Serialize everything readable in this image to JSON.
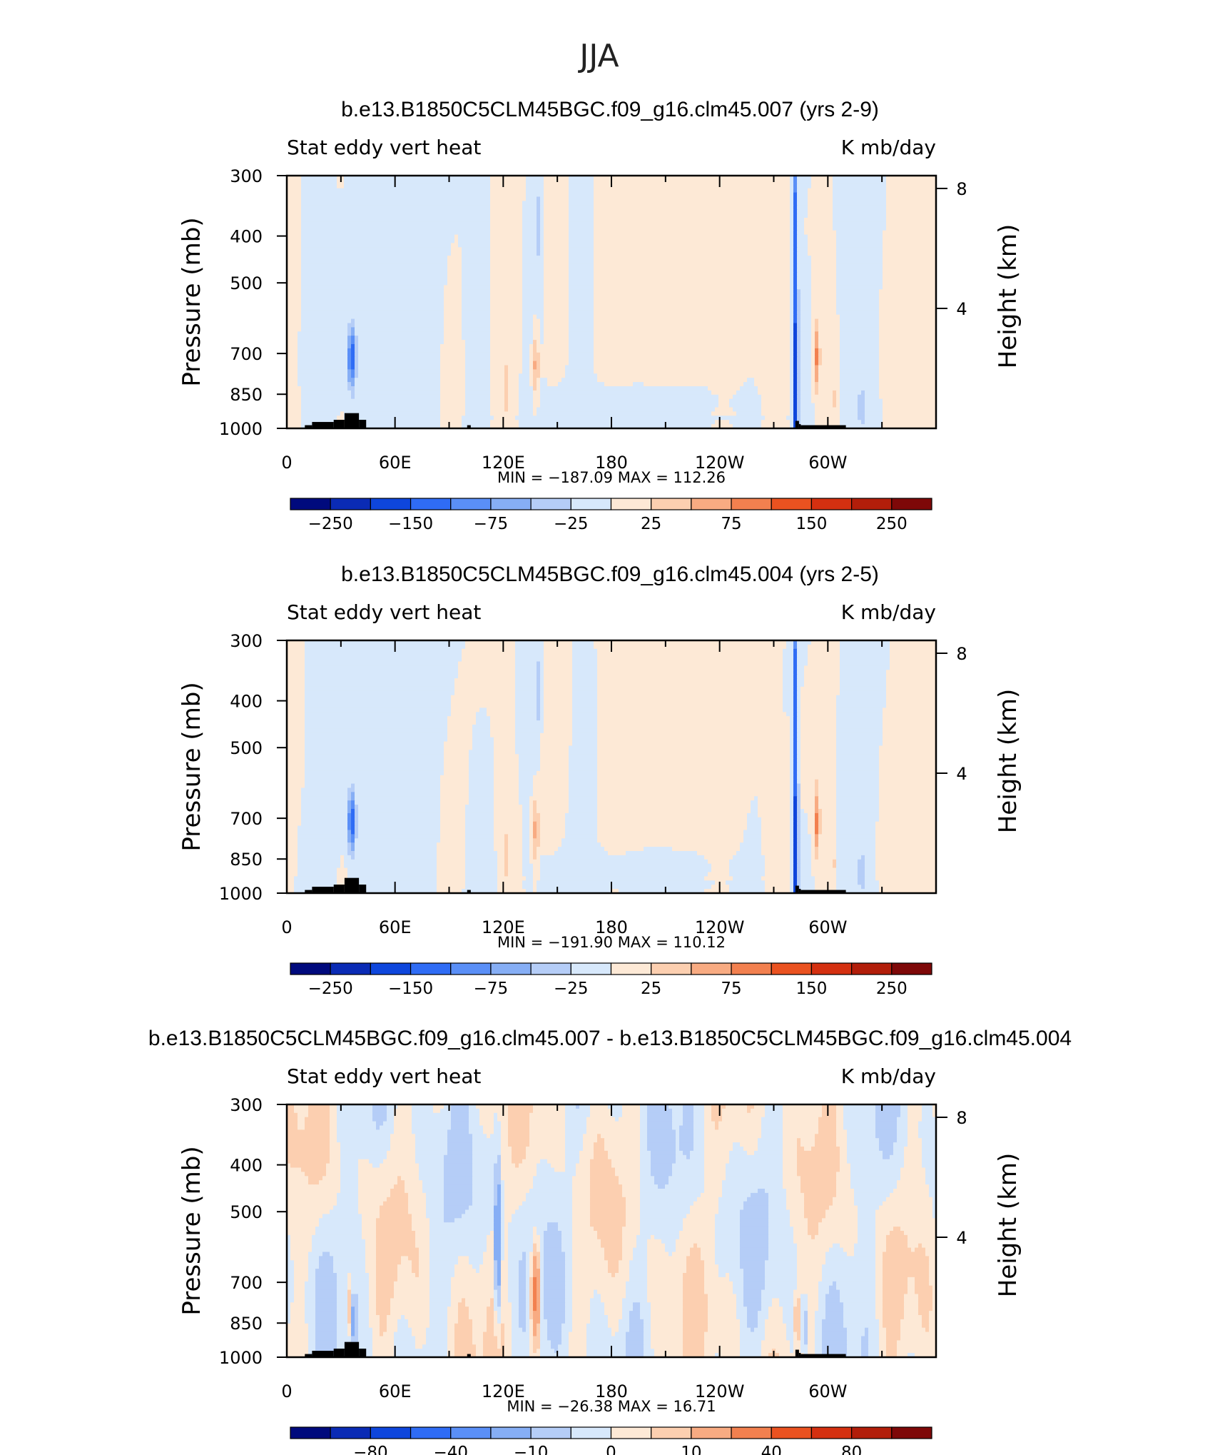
{
  "figure_title": "JJA",
  "colors": {
    "land": "#000000",
    "frame": "#000000",
    "cb_abs": [
      "#000a7d",
      "#0a2bb5",
      "#0e46dc",
      "#2f6cf5",
      "#5a8ff7",
      "#86aef5",
      "#b5cdf7",
      "#d7e8fb",
      "#fde9d6",
      "#fccfb0",
      "#f8ab82",
      "#f2804f",
      "#ea5220",
      "#d43010",
      "#b21e0a",
      "#7e0808"
    ],
    "cb_diff": [
      "#000a7d",
      "#0a2bb5",
      "#0e46dc",
      "#2f6cf5",
      "#5a8ff7",
      "#86aef5",
      "#b5cdf7",
      "#d7e8fb",
      "#fde9d6",
      "#fccfb0",
      "#f8ab82",
      "#f2804f",
      "#ea5220",
      "#d43010",
      "#b21e0a",
      "#7e0808"
    ]
  },
  "chart_data": [
    {
      "type": "heatmap",
      "title": "b.e13.B1850C5CLM45BGC.f09_g16.clm45.007 (yrs 2-9)",
      "left_label": "Stat eddy vert heat",
      "right_label": "K mb/day",
      "ylabel": "Pressure (mb)",
      "y2label": "Height (km)",
      "x_ticks": [
        "0",
        "60E",
        "120E",
        "180",
        "120W",
        "60W"
      ],
      "x_tick_values": [
        0,
        60,
        120,
        180,
        240,
        300
      ],
      "xlim": [
        0,
        360
      ],
      "y_ticks": [
        "300",
        "400",
        "500",
        "700",
        "850",
        "1000"
      ],
      "y_tick_values": [
        300,
        400,
        500,
        700,
        850,
        1000
      ],
      "ylim": [
        1000,
        300
      ],
      "y2_ticks": [
        "8",
        "4"
      ],
      "y2_tick_values": [
        8,
        4
      ],
      "stats": "MIN = −187.09   MAX = 112.26",
      "min": -187.09,
      "max": 112.26,
      "colorbar_labels": [
        "−250",
        "−150",
        "−75",
        "−25",
        "25",
        "75",
        "150",
        "250"
      ],
      "colorbar_levels": [
        -300,
        -250,
        -200,
        -150,
        -100,
        -75,
        -50,
        -25,
        0,
        25,
        50,
        75,
        100,
        150,
        200,
        250,
        300
      ]
    },
    {
      "type": "heatmap",
      "title": "b.e13.B1850C5CLM45BGC.f09_g16.clm45.004 (yrs 2-5)",
      "left_label": "Stat eddy vert heat",
      "right_label": "K mb/day",
      "ylabel": "Pressure (mb)",
      "y2label": "Height (km)",
      "x_ticks": [
        "0",
        "60E",
        "120E",
        "180",
        "120W",
        "60W"
      ],
      "x_tick_values": [
        0,
        60,
        120,
        180,
        240,
        300
      ],
      "xlim": [
        0,
        360
      ],
      "y_ticks": [
        "300",
        "400",
        "500",
        "700",
        "850",
        "1000"
      ],
      "y_tick_values": [
        300,
        400,
        500,
        700,
        850,
        1000
      ],
      "ylim": [
        1000,
        300
      ],
      "y2_ticks": [
        "8",
        "4"
      ],
      "y2_tick_values": [
        8,
        4
      ],
      "stats": "MIN = −191.90   MAX = 110.12",
      "min": -191.9,
      "max": 110.12,
      "colorbar_labels": [
        "−250",
        "−150",
        "−75",
        "−25",
        "25",
        "75",
        "150",
        "250"
      ],
      "colorbar_levels": [
        -300,
        -250,
        -200,
        -150,
        -100,
        -75,
        -50,
        -25,
        0,
        25,
        50,
        75,
        100,
        150,
        200,
        250,
        300
      ]
    },
    {
      "type": "heatmap",
      "title": "b.e13.B1850C5CLM45BGC.f09_g16.clm45.007 - b.e13.B1850C5CLM45BGC.f09_g16.clm45.004",
      "left_label": "Stat eddy vert heat",
      "right_label": "K mb/day",
      "ylabel": "Pressure (mb)",
      "y2label": "Height (km)",
      "x_ticks": [
        "0",
        "60E",
        "120E",
        "180",
        "120W",
        "60W"
      ],
      "x_tick_values": [
        0,
        60,
        120,
        180,
        240,
        300
      ],
      "xlim": [
        0,
        360
      ],
      "y_ticks": [
        "300",
        "400",
        "500",
        "700",
        "850",
        "1000"
      ],
      "y_tick_values": [
        300,
        400,
        500,
        700,
        850,
        1000
      ],
      "ylim": [
        1000,
        300
      ],
      "y2_ticks": [
        "8",
        "4"
      ],
      "y2_tick_values": [
        8,
        4
      ],
      "stats": "MIN = −26.38   MAX =   16.71",
      "min": -26.38,
      "max": 16.71,
      "colorbar_labels": [
        "−80",
        "−40",
        "−10",
        "0",
        "10",
        "40",
        "80"
      ],
      "colorbar_levels": [
        -100,
        -80,
        -60,
        -40,
        -20,
        -10,
        -5,
        -2,
        0,
        2,
        5,
        10,
        20,
        40,
        60,
        80,
        100
      ]
    }
  ]
}
